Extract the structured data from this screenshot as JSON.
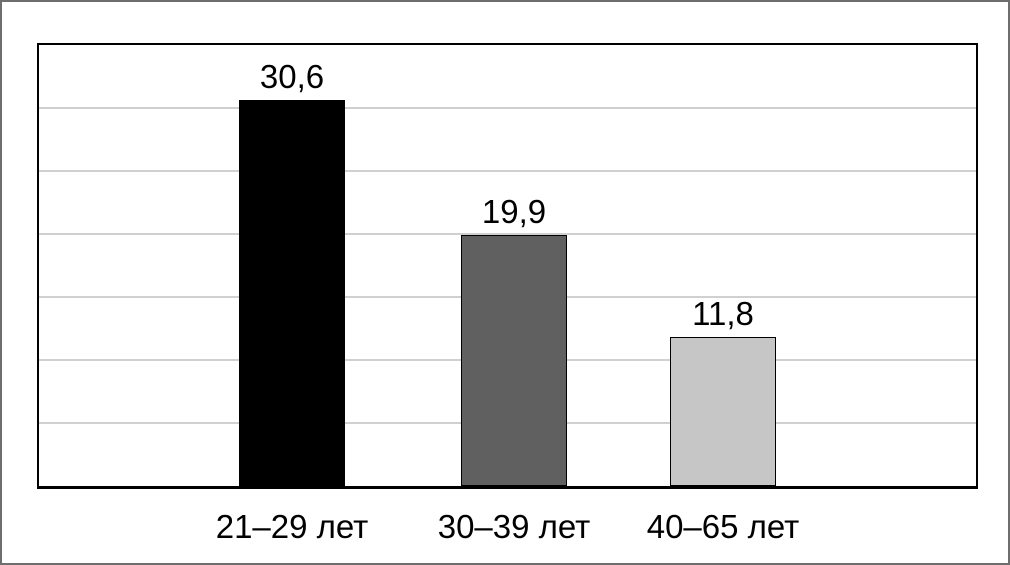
{
  "chart_data": {
    "type": "bar",
    "title": "",
    "xlabel": "",
    "ylabel": "",
    "categories": [
      "21–29 лет",
      "30–39 лет",
      "40–65 лет"
    ],
    "values": [
      30.6,
      19.9,
      11.8
    ],
    "value_labels": [
      "30,6",
      "19,9",
      "11,8"
    ],
    "ylim": [
      0,
      35
    ],
    "gridline_step": 5,
    "grid": true,
    "legend": false,
    "bar_colors": [
      "#000000",
      "#606060",
      "#c6c6c6"
    ],
    "bar_border_color": "#000000",
    "gridline_color": "#d0d0d0",
    "plot_border_color": "#000000",
    "axis_line_color": "#000000",
    "frame_border_color": "#6e6e6e",
    "background_color": "#ffffff",
    "text_color": "#000000"
  }
}
